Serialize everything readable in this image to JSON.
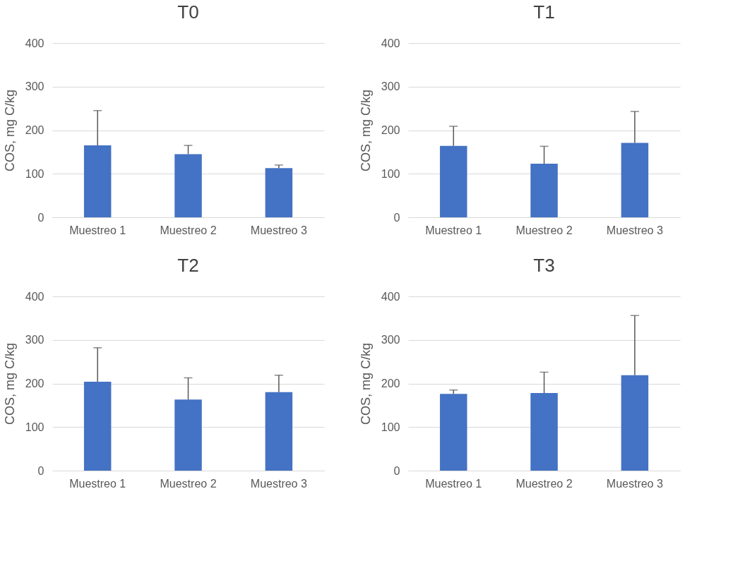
{
  "chart_data": [
    {
      "type": "bar",
      "title": "T0",
      "ylabel": "COS, mg C/kg",
      "categories": [
        "Muestreo 1",
        "Muestreo 2",
        "Muestreo 3"
      ],
      "values": [
        165,
        145,
        113
      ],
      "errors": [
        [
          165,
          245
        ],
        [
          145,
          165
        ],
        [
          113,
          120
        ]
      ],
      "color": "#4472c4",
      "ylim": [
        0,
        400
      ],
      "yticks": [
        0,
        100,
        200,
        300,
        400
      ],
      "grid": "y"
    },
    {
      "type": "bar",
      "title": "T1",
      "ylabel": "COS, mg C/kg",
      "categories": [
        "Muestreo 1",
        "Muestreo 2",
        "Muestreo 3"
      ],
      "values": [
        164,
        123,
        171
      ],
      "errors": [
        [
          164,
          209
        ],
        [
          123,
          163
        ],
        [
          171,
          243
        ]
      ],
      "color": "#4472c4",
      "ylim": [
        0,
        400
      ],
      "yticks": [
        0,
        100,
        200,
        300,
        400
      ],
      "grid": "y"
    },
    {
      "type": "bar",
      "title": "T2",
      "ylabel": "COS, mg C/kg",
      "categories": [
        "Muestreo 1",
        "Muestreo 2",
        "Muestreo 3"
      ],
      "values": [
        204,
        163,
        180
      ],
      "errors": [
        [
          204,
          282
        ],
        [
          163,
          213
        ],
        [
          180,
          219
        ]
      ],
      "color": "#4472c4",
      "ylim": [
        0,
        400
      ],
      "yticks": [
        0,
        100,
        200,
        300,
        400
      ],
      "grid": "y"
    },
    {
      "type": "bar",
      "title": "T3",
      "ylabel": "COS, mg C/kg",
      "categories": [
        "Muestreo 1",
        "Muestreo 2",
        "Muestreo 3"
      ],
      "values": [
        176,
        178,
        219
      ],
      "errors": [
        [
          176,
          185
        ],
        [
          178,
          226
        ],
        [
          219,
          356
        ]
      ],
      "color": "#4472c4",
      "ylim": [
        0,
        400
      ],
      "yticks": [
        0,
        100,
        200,
        300,
        400
      ],
      "grid": "y"
    }
  ]
}
